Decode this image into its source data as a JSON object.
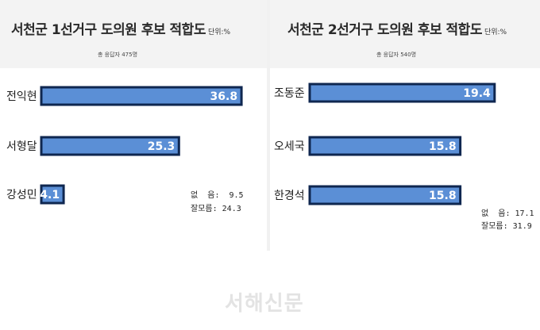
{
  "chart_data": [
    {
      "type": "bar",
      "orientation": "horizontal",
      "title": "서천군 1선거구 도의원 후보 적합도",
      "unit_label": "단위:%",
      "subtitle": "총 응답자 475명",
      "categories": [
        "전익현",
        "서형달",
        "강성민"
      ],
      "values": [
        36.8,
        25.3,
        4.1
      ],
      "xlim": [
        0,
        40
      ],
      "bar_color": "#5b8fd6",
      "bar_outline_color": "#0f2750",
      "notes": [
        {
          "label": "없  음",
          "value": "9.5"
        },
        {
          "label": "잘모름",
          "value": "24.3"
        }
      ]
    },
    {
      "type": "bar",
      "orientation": "horizontal",
      "title": "서천군 2선거구 도의원 후보 적합도",
      "unit_label": "단위:%",
      "subtitle": "총 응답자 540명",
      "categories": [
        "조동준",
        "오세국",
        "한경석"
      ],
      "values": [
        19.4,
        15.8,
        15.8
      ],
      "xlim": [
        0,
        20.5
      ],
      "bar_color": "#5b8fd6",
      "bar_outline_color": "#0f2750",
      "notes": [
        {
          "label": "없  음",
          "value": "17.1"
        },
        {
          "label": "잘모름",
          "value": "31.9"
        }
      ]
    }
  ],
  "watermark": "서해신문"
}
